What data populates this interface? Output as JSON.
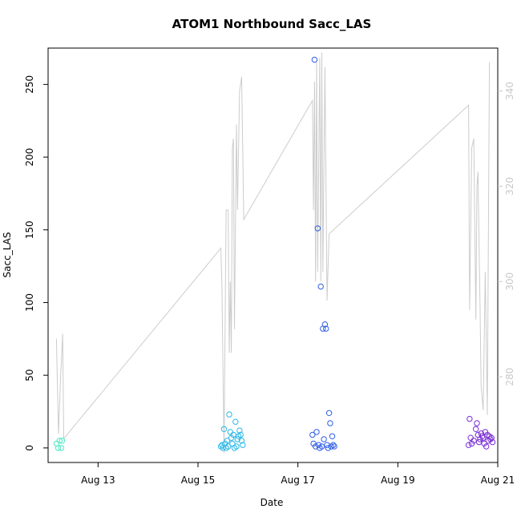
{
  "chart_data": {
    "type": "scatter",
    "title": "ATOM1 Northbound Sacc_LAS",
    "xlabel": "Date",
    "ylabel": "Sacc_LAS",
    "xlim": [
      "2012-08-12T00:00",
      "2012-08-21T00:00"
    ],
    "ylim": [
      -10,
      275
    ],
    "x_ticks": [
      {
        "x": "2012-08-13T00:00",
        "label": "Aug 13"
      },
      {
        "x": "2012-08-15T00:00",
        "label": "Aug 15"
      },
      {
        "x": "2012-08-17T00:00",
        "label": "Aug 17"
      },
      {
        "x": "2012-08-19T00:00",
        "label": "Aug 19"
      },
      {
        "x": "2012-08-21T00:00",
        "label": "Aug 21"
      }
    ],
    "y_ticks": [
      0,
      50,
      100,
      150,
      200,
      250
    ],
    "y2_ticks": [
      280,
      300,
      320,
      340
    ],
    "y2lim": [
      262,
      349
    ],
    "grid": false,
    "legend": "none",
    "series": [
      {
        "color": "#4de8c4",
        "points": [
          [
            "2012-08-12T04:00",
            3
          ],
          [
            "2012-08-12T04:50",
            0
          ],
          [
            "2012-08-12T05:30",
            5
          ],
          [
            "2012-08-12T06:20",
            0
          ],
          [
            "2012-08-12T06:45",
            5
          ]
        ]
      },
      {
        "color": "#2ab8e8",
        "points": [
          [
            "2012-08-15T11:00",
            1
          ],
          [
            "2012-08-15T11:30",
            2
          ],
          [
            "2012-08-15T12:00",
            0
          ],
          [
            "2012-08-15T12:30",
            13
          ],
          [
            "2012-08-15T13:00",
            3
          ],
          [
            "2012-08-15T13:30",
            0
          ],
          [
            "2012-08-15T14:00",
            5
          ],
          [
            "2012-08-15T14:30",
            1
          ],
          [
            "2012-08-15T15:00",
            23
          ],
          [
            "2012-08-15T15:30",
            11
          ],
          [
            "2012-08-15T16:00",
            7
          ],
          [
            "2012-08-15T16:30",
            3
          ],
          [
            "2012-08-15T17:00",
            9
          ],
          [
            "2012-08-15T17:30",
            0
          ],
          [
            "2012-08-15T18:00",
            18
          ],
          [
            "2012-08-15T18:30",
            1
          ],
          [
            "2012-08-15T19:00",
            6
          ],
          [
            "2012-08-15T19:30",
            8
          ],
          [
            "2012-08-15T20:00",
            12
          ],
          [
            "2012-08-15T20:30",
            9
          ],
          [
            "2012-08-15T21:00",
            5
          ],
          [
            "2012-08-15T21:30",
            2
          ]
        ]
      },
      {
        "color": "#2f5fe6",
        "points": [
          [
            "2012-08-17T07:00",
            9
          ],
          [
            "2012-08-17T07:30",
            3
          ],
          [
            "2012-08-17T08:00",
            267
          ],
          [
            "2012-08-17T08:30",
            1
          ],
          [
            "2012-08-17T09:00",
            11
          ],
          [
            "2012-08-17T09:30",
            151
          ],
          [
            "2012-08-17T10:00",
            2
          ],
          [
            "2012-08-17T10:30",
            0
          ],
          [
            "2012-08-17T11:00",
            111
          ],
          [
            "2012-08-17T11:30",
            1
          ],
          [
            "2012-08-17T12:00",
            82
          ],
          [
            "2012-08-17T12:30",
            6
          ],
          [
            "2012-08-17T13:00",
            85
          ],
          [
            "2012-08-17T13:30",
            82
          ],
          [
            "2012-08-17T14:00",
            2
          ],
          [
            "2012-08-17T14:30",
            0
          ],
          [
            "2012-08-17T15:00",
            24
          ],
          [
            "2012-08-17T15:30",
            17
          ],
          [
            "2012-08-17T16:00",
            1
          ],
          [
            "2012-08-17T16:30",
            8
          ],
          [
            "2012-08-17T17:00",
            2
          ],
          [
            "2012-08-17T17:30",
            1
          ]
        ]
      },
      {
        "color": "#7a2ed6",
        "points": [
          [
            "2012-08-20T10:00",
            2
          ],
          [
            "2012-08-20T10:30",
            20
          ],
          [
            "2012-08-20T11:00",
            7
          ],
          [
            "2012-08-20T11:30",
            3
          ],
          [
            "2012-08-20T12:30",
            5
          ],
          [
            "2012-08-20T13:30",
            13
          ],
          [
            "2012-08-20T14:00",
            17
          ],
          [
            "2012-08-20T14:30",
            9
          ],
          [
            "2012-08-20T15:00",
            4
          ],
          [
            "2012-08-20T15:30",
            6
          ],
          [
            "2012-08-20T16:00",
            10
          ],
          [
            "2012-08-20T16:30",
            8
          ],
          [
            "2012-08-20T17:00",
            7
          ],
          [
            "2012-08-20T17:30",
            3
          ],
          [
            "2012-08-20T18:00",
            11
          ],
          [
            "2012-08-20T18:30",
            1
          ],
          [
            "2012-08-20T19:00",
            9
          ],
          [
            "2012-08-20T19:30",
            5
          ],
          [
            "2012-08-20T20:00",
            8
          ],
          [
            "2012-08-20T20:30",
            6
          ],
          [
            "2012-08-20T21:00",
            7
          ],
          [
            "2012-08-20T21:30",
            4
          ]
        ]
      }
    ],
    "secondary_line": {
      "color": "#cccccc",
      "axis": "right",
      "points": [
        [
          "2012-08-12T04:00",
          288
        ],
        [
          "2012-08-12T05:00",
          268
        ],
        [
          "2012-08-12T06:00",
          280
        ],
        [
          "2012-08-12T07:00",
          289
        ],
        [
          "2012-08-12T07:30",
          267
        ],
        [
          "2012-08-15T11:00",
          307
        ],
        [
          "2012-08-15T11:30",
          299
        ],
        [
          "2012-08-15T12:30",
          264
        ],
        [
          "2012-08-15T13:30",
          315
        ],
        [
          "2012-08-15T14:30",
          315
        ],
        [
          "2012-08-15T15:00",
          285
        ],
        [
          "2012-08-15T15:30",
          300
        ],
        [
          "2012-08-15T16:00",
          285
        ],
        [
          "2012-08-15T16:30",
          328
        ],
        [
          "2012-08-15T17:00",
          330
        ],
        [
          "2012-08-15T17:30",
          290
        ],
        [
          "2012-08-15T18:30",
          333
        ],
        [
          "2012-08-15T19:00",
          315
        ],
        [
          "2012-08-15T20:00",
          340
        ],
        [
          "2012-08-15T21:00",
          343
        ],
        [
          "2012-08-15T22:00",
          313
        ],
        [
          "2012-08-17T07:00",
          338
        ],
        [
          "2012-08-17T07:30",
          315
        ],
        [
          "2012-08-17T08:00",
          342
        ],
        [
          "2012-08-17T08:30",
          300
        ],
        [
          "2012-08-17T09:00",
          346
        ],
        [
          "2012-08-17T09:30",
          302
        ],
        [
          "2012-08-17T10:30",
          347
        ],
        [
          "2012-08-17T11:00",
          300
        ],
        [
          "2012-08-17T11:30",
          348
        ],
        [
          "2012-08-17T12:00",
          302
        ],
        [
          "2012-08-17T13:00",
          345
        ],
        [
          "2012-08-17T14:00",
          296
        ],
        [
          "2012-08-17T15:00",
          310
        ],
        [
          "2012-08-20T10:00",
          337
        ],
        [
          "2012-08-20T10:30",
          294
        ],
        [
          "2012-08-20T11:30",
          328
        ],
        [
          "2012-08-20T12:30",
          330
        ],
        [
          "2012-08-20T13:30",
          292
        ],
        [
          "2012-08-20T14:00",
          320
        ],
        [
          "2012-08-20T14:30",
          323
        ],
        [
          "2012-08-20T15:30",
          295
        ],
        [
          "2012-08-20T16:00",
          278
        ],
        [
          "2012-08-20T17:00",
          273
        ],
        [
          "2012-08-20T18:00",
          302
        ],
        [
          "2012-08-20T19:00",
          272
        ],
        [
          "2012-08-20T20:00",
          346
        ]
      ]
    }
  }
}
